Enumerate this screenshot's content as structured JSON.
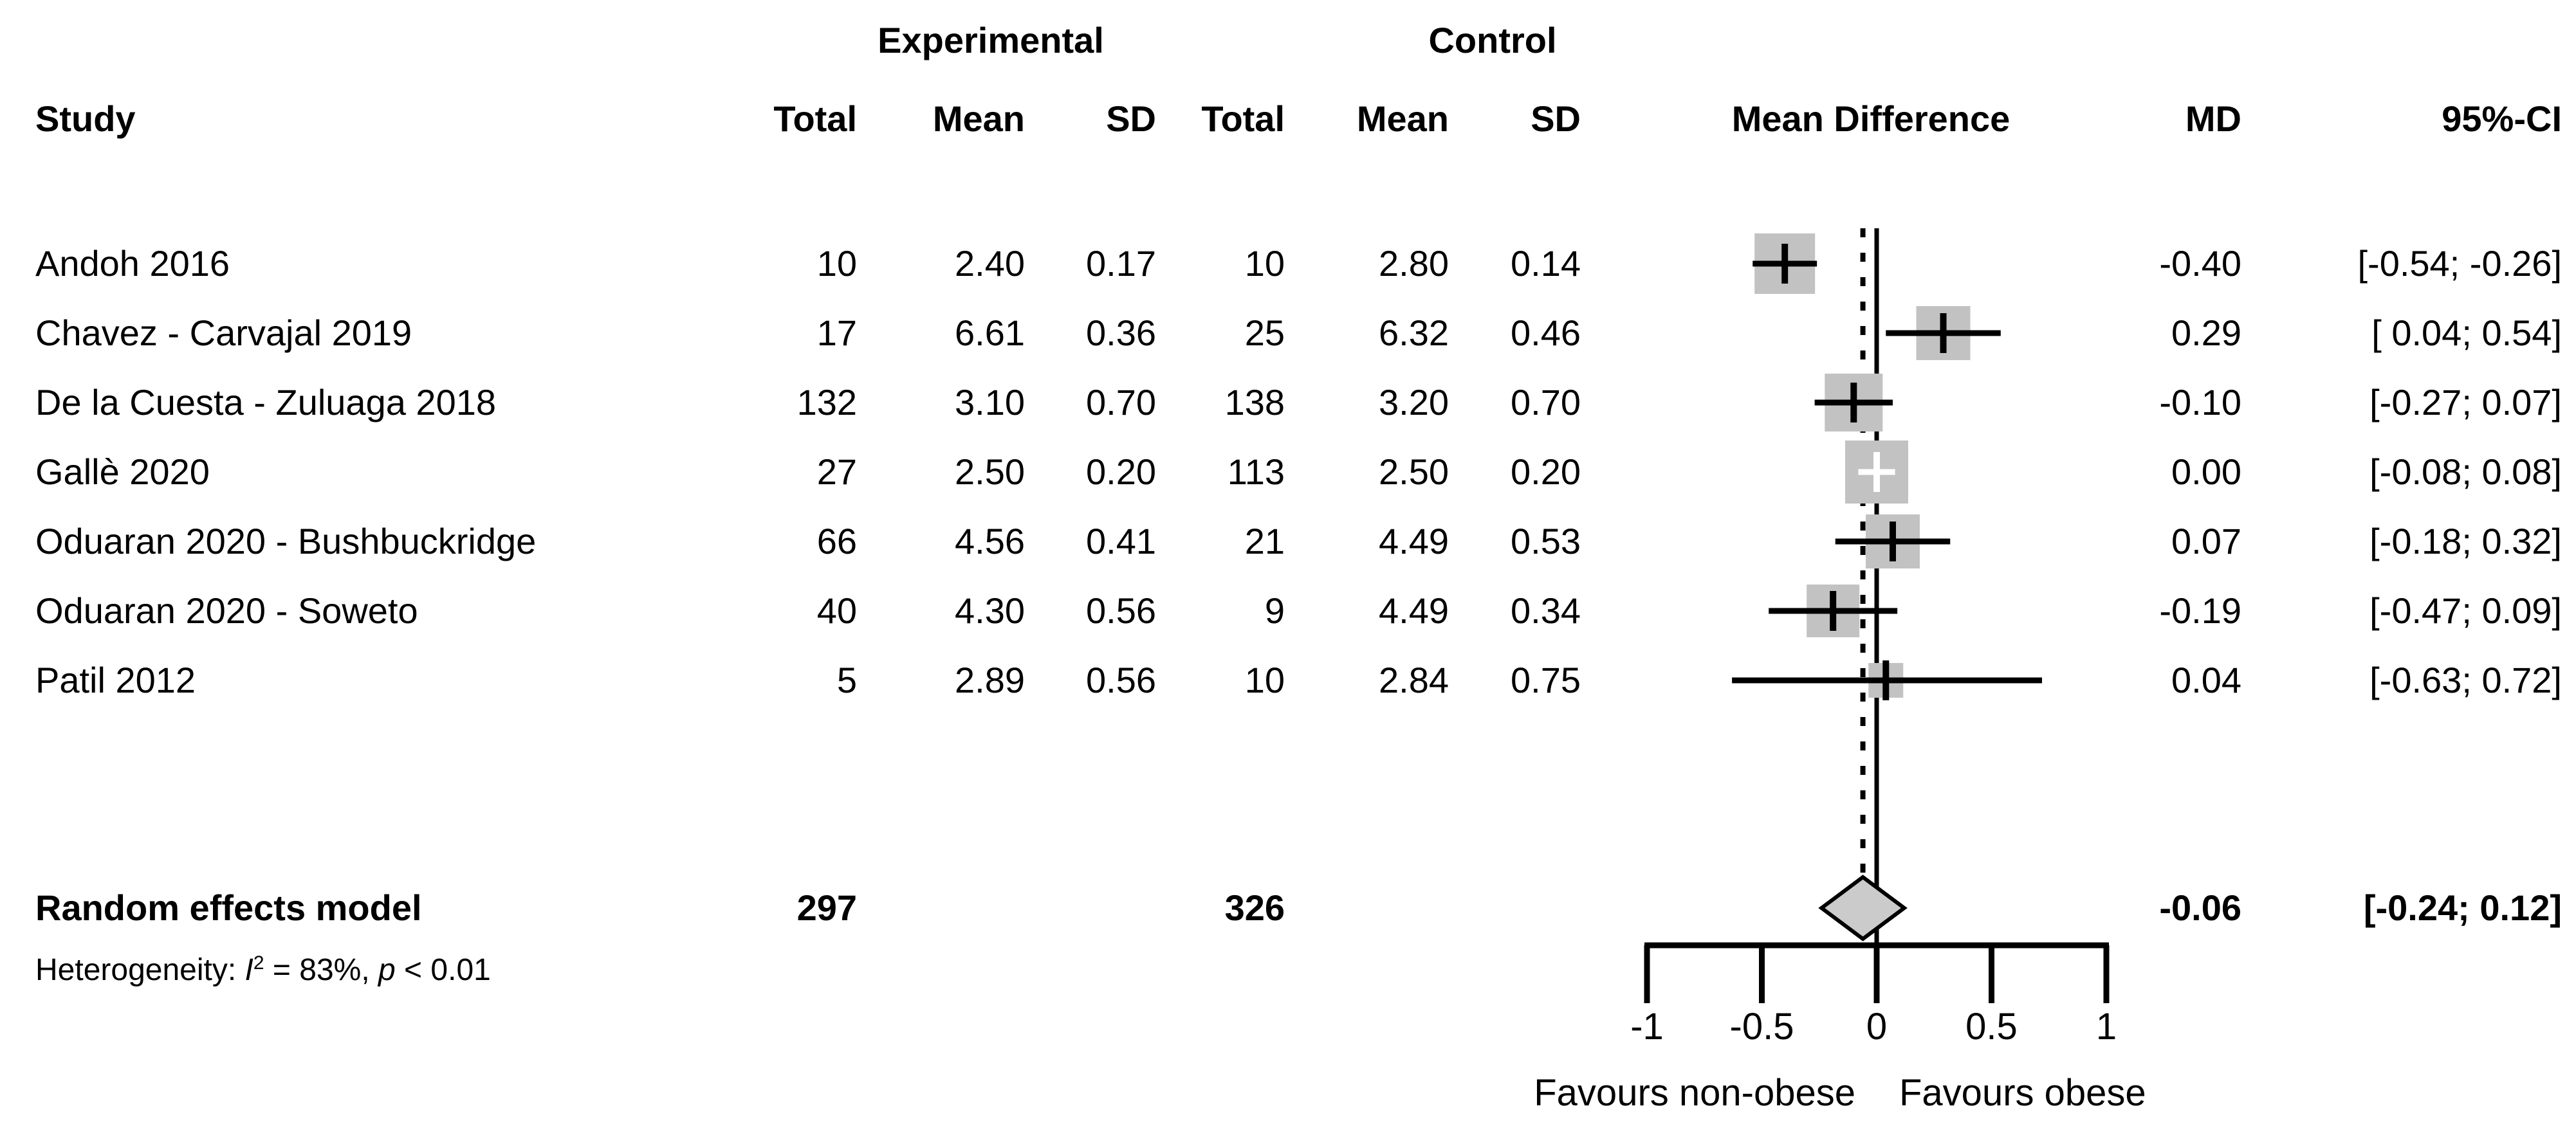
{
  "header": {
    "group_experimental": "Experimental",
    "group_control": "Control",
    "col_study": "Study",
    "col_total_exp": "Total",
    "col_mean_exp": "Mean",
    "col_sd_exp": "SD",
    "col_total_ctl": "Total",
    "col_mean_ctl": "Mean",
    "col_sd_ctl": "SD",
    "col_effect": "Mean Difference",
    "col_md": "MD",
    "col_ci": "95%-CI"
  },
  "footer": {
    "heterogeneity": {
      "prefix": "Heterogeneity: ",
      "stat": "I",
      "sup": "2",
      "eq": " = 83%, ",
      "pvar": "p",
      "pval": " < 0.01"
    }
  },
  "chart_data": {
    "type": "forest",
    "effect_measure": "Mean Difference",
    "xlabel_left": "Favours non-obese",
    "xlabel_right": "Favours obese",
    "axis": {
      "xlim": [
        -1,
        1
      ],
      "ticks": [
        -1,
        -0.5,
        0,
        0.5,
        1
      ],
      "tick_labels": [
        "-1",
        "-0.5",
        "0",
        "0.5",
        "1"
      ],
      "zero_line": 0,
      "pooled_line": -0.06
    },
    "studies": [
      {
        "name": "Andoh 2016",
        "exp_total": "10",
        "exp_mean": "2.40",
        "exp_sd": "0.17",
        "ctl_total": "10",
        "ctl_mean": "2.80",
        "ctl_sd": "0.14",
        "md": -0.4,
        "lo": -0.54,
        "hi": -0.26,
        "md_text": "-0.40",
        "ci_text": "[-0.54; -0.26]"
      },
      {
        "name": "Chavez - Carvajal 2019",
        "exp_total": "17",
        "exp_mean": "6.61",
        "exp_sd": "0.36",
        "ctl_total": "25",
        "ctl_mean": "6.32",
        "ctl_sd": "0.46",
        "md": 0.29,
        "lo": 0.04,
        "hi": 0.54,
        "md_text": "0.29",
        "ci_text": "[ 0.04; 0.54]"
      },
      {
        "name": "De la Cuesta - Zuluaga 2018",
        "exp_total": "132",
        "exp_mean": "3.10",
        "exp_sd": "0.70",
        "ctl_total": "138",
        "ctl_mean": "3.20",
        "ctl_sd": "0.70",
        "md": -0.1,
        "lo": -0.27,
        "hi": 0.07,
        "md_text": "-0.10",
        "ci_text": "[-0.27; 0.07]"
      },
      {
        "name": "Gallè 2020",
        "exp_total": "27",
        "exp_mean": "2.50",
        "exp_sd": "0.20",
        "ctl_total": "113",
        "ctl_mean": "2.50",
        "ctl_sd": "0.20",
        "md": 0.0,
        "lo": -0.08,
        "hi": 0.08,
        "md_text": "0.00",
        "ci_text": "[-0.08; 0.08]"
      },
      {
        "name": "Oduaran 2020 - Bushbuckridge",
        "exp_total": "66",
        "exp_mean": "4.56",
        "exp_sd": "0.41",
        "ctl_total": "21",
        "ctl_mean": "4.49",
        "ctl_sd": "0.53",
        "md": 0.07,
        "lo": -0.18,
        "hi": 0.32,
        "md_text": "0.07",
        "ci_text": "[-0.18; 0.32]"
      },
      {
        "name": "Oduaran 2020 - Soweto",
        "exp_total": "40",
        "exp_mean": "4.30",
        "exp_sd": "0.56",
        "ctl_total": "9",
        "ctl_mean": "4.49",
        "ctl_sd": "0.34",
        "md": -0.19,
        "lo": -0.47,
        "hi": 0.09,
        "md_text": "-0.19",
        "ci_text": "[-0.47; 0.09]"
      },
      {
        "name": "Patil 2012",
        "exp_total": "5",
        "exp_mean": "2.89",
        "exp_sd": "0.56",
        "ctl_total": "10",
        "ctl_mean": "2.84",
        "ctl_sd": "0.75",
        "md": 0.04,
        "lo": -0.63,
        "hi": 0.72,
        "md_text": "0.04",
        "ci_text": "[-0.63; 0.72]"
      }
    ],
    "summary": {
      "name": "Random effects model",
      "exp_total": "297",
      "ctl_total": "326",
      "md": -0.06,
      "lo": -0.24,
      "hi": 0.12,
      "md_text": "-0.06",
      "ci_text": "[-0.24; 0.12]",
      "heterogeneity_text": "Heterogeneity: I2 = 83%, p < 0.01"
    }
  }
}
